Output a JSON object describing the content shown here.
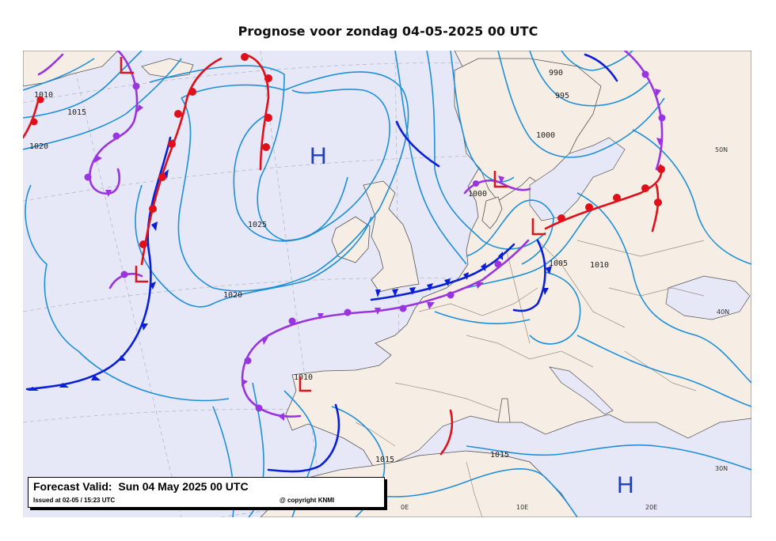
{
  "title": "Prognose voor zondag 04-05-2025 00 UTC",
  "colors": {
    "sea": "#e6e8f7",
    "land": "#f6eee4",
    "coast": "#555555",
    "border": "#9a8f85",
    "isobar": "#1f8fd8",
    "graticule": "#b9b9c4",
    "cold_front": "#0a1fd6",
    "warm_front": "#e0101a",
    "occluded_front": "#9a33e0",
    "high": "#1d3fbf",
    "low": "#d41820"
  },
  "isobar_labels": [
    "1010",
    "1015",
    "1020",
    "1025",
    "1020",
    "1000",
    "995",
    "990",
    "1000",
    "1005",
    "1010",
    "1010",
    "1015",
    "1015"
  ],
  "pressure_centers": {
    "highs": [
      "H",
      "H"
    ],
    "lows": [
      "L",
      "L",
      "L",
      "L",
      "L"
    ]
  },
  "graticule_labels": [
    "50N",
    "40N",
    "30N",
    "0E",
    "10E",
    "20E"
  ],
  "info_box": {
    "valid": "Forecast Valid:  Sun 04 May 2025 00 UTC",
    "issued": "Issued at 02-05 / 15:23 UTC",
    "copyright": "@ copyright KNMI"
  }
}
